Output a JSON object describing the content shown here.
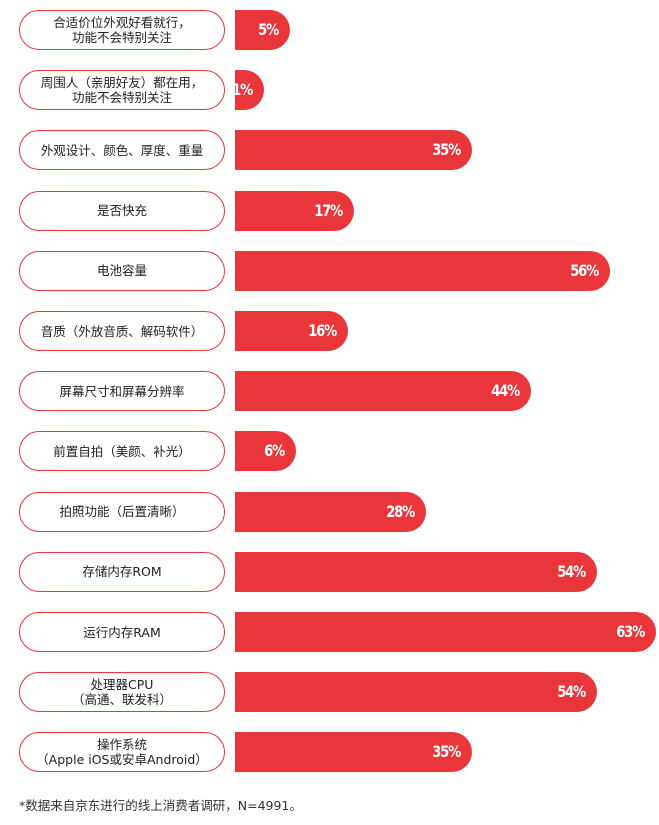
{
  "chart_data": {
    "type": "bar",
    "orientation": "horizontal",
    "unit": "%",
    "categories": [
      "合适价位外观好看就行，\n功能不会特别关注",
      "周围人（亲朋好友）都在用，\n功能不会特别关注",
      "外观设计、颜色、厚度、重量",
      "是否快充",
      "电池容量",
      "音质（外放音质、解码软件）",
      "屏幕尺寸和屏幕分辨率",
      "前置自拍（美颜、补光）",
      "拍照功能（后置清晰）",
      "存储内存ROM",
      "运行内存RAM",
      "处理器CPU\n（高通、联发科）",
      "操作系统\n（Apple iOS或安卓Android）"
    ],
    "values": [
      5,
      1,
      35,
      17,
      56,
      16,
      44,
      6,
      28,
      54,
      63,
      54,
      35
    ],
    "value_labels": [
      "5%",
      "1%",
      "35%",
      "17%",
      "56%",
      "16%",
      "44%",
      "6%",
      "28%",
      "54%",
      "63%",
      "54%",
      "35%"
    ],
    "bar_color": "#e8363b",
    "label_border_color": "#e8363b",
    "value_label_color": "#ffffff"
  },
  "footnote": "*数据来自京东进行的线上消费者调研，N=4991。"
}
